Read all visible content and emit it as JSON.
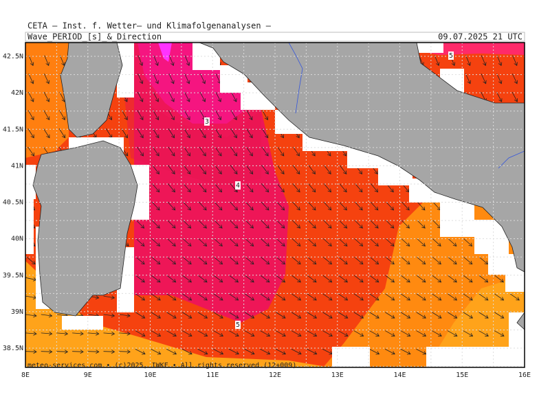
{
  "header": {
    "line1": "CETA — Inst. f. Wetter— und Klimafolgenanalysen —",
    "product": "Wave_PERIOD_[s]_&_Direction",
    "datetime": "09.07.2025  21 UTC"
  },
  "map": {
    "lat_labels": [
      "42.5N",
      "42N",
      "41.5N",
      "41N",
      "40.5N",
      "40N",
      "39.5N",
      "39N",
      "38.5N"
    ],
    "lon_labels": [
      "8E",
      "9E",
      "10E",
      "11E",
      "12E",
      "13E",
      "14E",
      "15E",
      "16E"
    ],
    "contour_labels": [
      "3",
      "4",
      "5",
      "5"
    ],
    "footer": "meteo-services.com  •  (c)2025, IWKF  •  All rights reserved  (12+009)"
  }
}
